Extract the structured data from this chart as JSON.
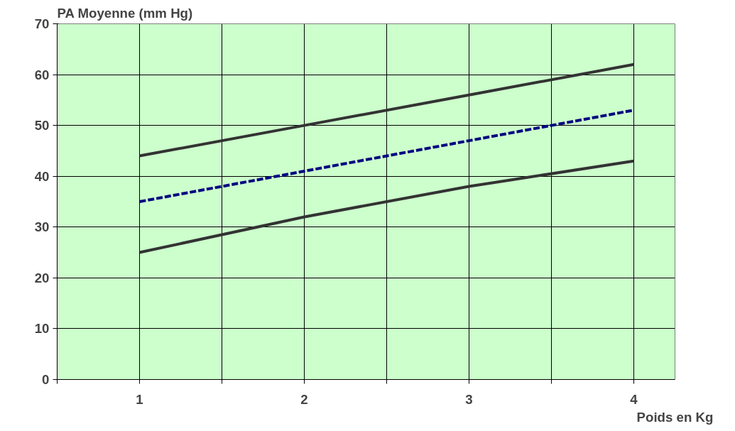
{
  "chart_data": {
    "type": "line",
    "ylabel": "PA Moyenne (mm Hg)",
    "xlabel": "Poids en Kg",
    "x": [
      1,
      2,
      3,
      4
    ],
    "series": [
      {
        "color": "#333333",
        "line_style": "solid",
        "values": [
          44,
          50,
          56,
          62
        ]
      },
      {
        "color": "#000080",
        "line_style": "dashed",
        "values": [
          35,
          41,
          47,
          53
        ]
      },
      {
        "color": "#333333",
        "line_style": "solid",
        "values": [
          25,
          32,
          38,
          43
        ]
      }
    ],
    "xlim": [
      0.5,
      4.25
    ],
    "ylim": [
      0,
      70
    ],
    "xticks": [
      {
        "value": 0.5,
        "label": null
      },
      1,
      {
        "value": 1.5,
        "label": null
      },
      2,
      {
        "value": 2.5,
        "label": null
      },
      3,
      {
        "value": 3.5,
        "label": null
      },
      4
    ],
    "yticks": [
      0,
      10,
      20,
      30,
      40,
      50,
      60,
      70
    ],
    "grid": true,
    "marker": "none"
  }
}
